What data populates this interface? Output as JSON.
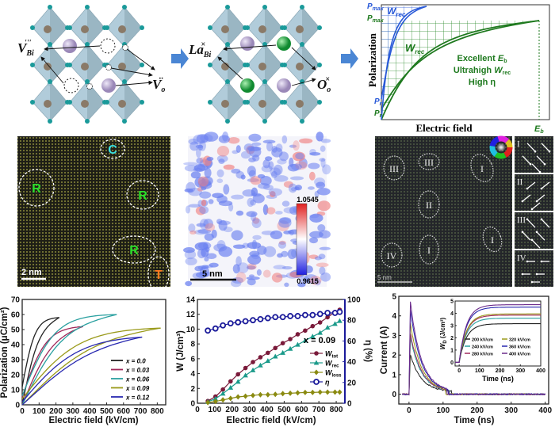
{
  "colors": {
    "octahedron": "#a9c7d6",
    "oxygen": "#1a9a9a",
    "bi": "#b8a8d0",
    "la": "#2aa84a",
    "arrow": "#4a86d4",
    "green": "#2a8a2a",
    "blue": "#2a5ad8"
  },
  "panel_a": {
    "vacancy_bi_label": "V",
    "vacancy_bi_sub": "Bi",
    "vacancy_bi_sup": "'''",
    "vacancy_o_label": "V",
    "vacancy_o_sub": "o",
    "vacancy_o_sup": "··",
    "la_label": "La",
    "la_sub": "Bi",
    "la_sup": "×",
    "o_label": "O",
    "o_sub": "o",
    "o_sup": "×"
  },
  "schematic": {
    "ylabel": "Polarization",
    "xlabel": "Electric field",
    "pmax_label": "P",
    "pmax_sub": "max",
    "pr_label": "P",
    "pr_sub": "r",
    "wrec_label": "W",
    "wrec_sub": "rec",
    "eb_label": "E",
    "eb_sub": "b",
    "line1_a": "Excellent ",
    "line1_b": "E",
    "line1_sub": "b",
    "line2_a": "Ultrahigh ",
    "line2_b": "W",
    "line2_sub": "rec",
    "line3": "High η"
  },
  "micrographs": {
    "stem_left": {
      "labels": [
        "C",
        "R",
        "R",
        "R",
        "T"
      ],
      "scale_bar": "2 nm"
    },
    "strain_map": {
      "scale_bar": "5 nm",
      "colorbar_max": "1.0545",
      "colorbar_min": "0.9615"
    },
    "polar_map": {
      "regions": [
        "III",
        "III",
        "I",
        "II",
        "IV",
        "I",
        "I"
      ],
      "scale_bar": "5 nm",
      "insets": [
        "I",
        "II",
        "III",
        "IV"
      ]
    }
  },
  "chart_data": [
    {
      "type": "line",
      "title": "",
      "xlabel": "Electric field (kV/cm)",
      "ylabel": "Polarization (μC/cm²)",
      "xlim": [
        0,
        850
      ],
      "ylim": [
        0,
        70
      ],
      "xticks": [
        0,
        100,
        200,
        300,
        400,
        500,
        600,
        700,
        800
      ],
      "yticks": [
        0,
        10,
        20,
        30,
        40,
        50,
        60,
        70
      ],
      "legend_position": "center-right",
      "series": [
        {
          "name": "x = 0.0",
          "color": "#222222",
          "emax": 220,
          "pmax": 58,
          "pr": 12,
          "ec": 60
        },
        {
          "name": "x = 0.03",
          "color": "#a0285a",
          "emax": 360,
          "pmax": 52,
          "pr": 5,
          "ec": 110
        },
        {
          "name": "x = 0.06",
          "color": "#2aa0a0",
          "emax": 560,
          "pmax": 60,
          "pr": 6,
          "ec": 150
        },
        {
          "name": "x = 0.09",
          "color": "#9a9a1a",
          "emax": 820,
          "pmax": 51,
          "pr": 4,
          "ec": 260
        },
        {
          "name": "x = 0.12",
          "color": "#2828b0",
          "emax": 710,
          "pmax": 45,
          "pr": 2,
          "ec": 260
        }
      ],
      "legend_prefix": "x"
    },
    {
      "type": "line",
      "xlabel": "Electric field (kV/cm)",
      "ylabel_left": "W (J/cm³)",
      "ylabel_right": "η (%)",
      "xlim": [
        0,
        850
      ],
      "ylim": [
        0,
        14
      ],
      "ylim_right": [
        0,
        100
      ],
      "xticks": [
        0,
        100,
        200,
        300,
        400,
        500,
        600,
        700,
        800
      ],
      "yticks": [
        0,
        2,
        4,
        6,
        8,
        10,
        12,
        14
      ],
      "yticks_right": [
        0,
        20,
        40,
        60,
        80,
        100
      ],
      "annotation": "x = 0.09",
      "x": [
        60,
        104,
        147,
        191,
        234,
        277,
        320,
        363,
        406,
        449,
        492,
        535,
        578,
        621,
        664,
        707,
        750,
        793,
        820
      ],
      "series": [
        {
          "name": "W_tot",
          "label": "W",
          "sub": "tot",
          "color": "#7a1a3a",
          "marker": "circle",
          "axis": "left",
          "values": [
            0.3,
            0.9,
            1.85,
            2.95,
            3.9,
            4.75,
            5.55,
            6.2,
            6.8,
            7.45,
            8.1,
            8.65,
            9.3,
            9.8,
            10.4,
            10.9,
            11.6,
            12.3,
            12.6
          ]
        },
        {
          "name": "W_rec",
          "label": "W",
          "sub": "rec",
          "color": "#1a9a8a",
          "marker": "triangle",
          "axis": "left",
          "values": [
            0.2,
            0.6,
            1.3,
            2.1,
            2.9,
            3.75,
            4.45,
            5.1,
            5.7,
            6.3,
            6.8,
            7.35,
            7.9,
            8.45,
            9.0,
            9.5,
            10.2,
            10.7,
            11.1
          ]
        },
        {
          "name": "W_loss",
          "label": "W",
          "sub": "loss",
          "color": "#8a8a10",
          "marker": "diamond",
          "axis": "left",
          "values": [
            0.1,
            0.25,
            0.45,
            0.65,
            0.85,
            0.95,
            1.05,
            1.15,
            1.15,
            1.2,
            1.3,
            1.35,
            1.4,
            1.45,
            1.45,
            1.5,
            1.5,
            1.5,
            1.5
          ]
        },
        {
          "name": "η",
          "label": "η",
          "sub": "",
          "color": "#1a1a9a",
          "marker": "open-circle",
          "axis": "right",
          "values": [
            70,
            72,
            75,
            77,
            78,
            79,
            80,
            81,
            82,
            83,
            83,
            84,
            84,
            85,
            85,
            86,
            87,
            87,
            88
          ]
        }
      ]
    },
    {
      "type": "line",
      "xlabel": "Time (ns)",
      "ylabel": "Current (A)",
      "xlim": [
        -30,
        410
      ],
      "ylim": [
        -0.5,
        5
      ],
      "xticks": [
        0,
        100,
        200,
        300,
        400
      ],
      "yticks": [
        0,
        1,
        2,
        3,
        4,
        5
      ],
      "series": [
        {
          "name": "200 kV/cm",
          "color": "#222222",
          "peak": 1.9,
          "end_ns": 125,
          "wd": 3.15
        },
        {
          "name": "240 kV/cm",
          "color": "#2aa0a0",
          "peak": 2.8,
          "end_ns": 120,
          "wd": 3.6
        },
        {
          "name": "280 kV/cm",
          "color": "#a0285a",
          "peak": 3.0,
          "end_ns": 118,
          "wd": 3.85
        },
        {
          "name": "320 kV/cm",
          "color": "#9a9a1a",
          "peak": 3.5,
          "end_ns": 108,
          "wd": 3.95
        },
        {
          "name": "360 kV/cm",
          "color": "#2828b0",
          "peak": 4.2,
          "end_ns": 115,
          "wd": 4.5
        },
        {
          "name": "400 kV/cm",
          "color": "#6a2a8a",
          "peak": 4.6,
          "end_ns": 112,
          "wd": 4.7
        }
      ],
      "inset": {
        "xlabel": "Time (ns)",
        "ylabel": "W",
        "ylabel_sub": "D",
        "ylabel_unit": " (J/cm³)",
        "xlim": [
          -20,
          400
        ],
        "ylim": [
          -0.3,
          5
        ],
        "xticks": [
          0,
          100,
          200,
          300,
          400
        ],
        "yticks": [
          0,
          1,
          2,
          3,
          4,
          5
        ]
      }
    }
  ]
}
